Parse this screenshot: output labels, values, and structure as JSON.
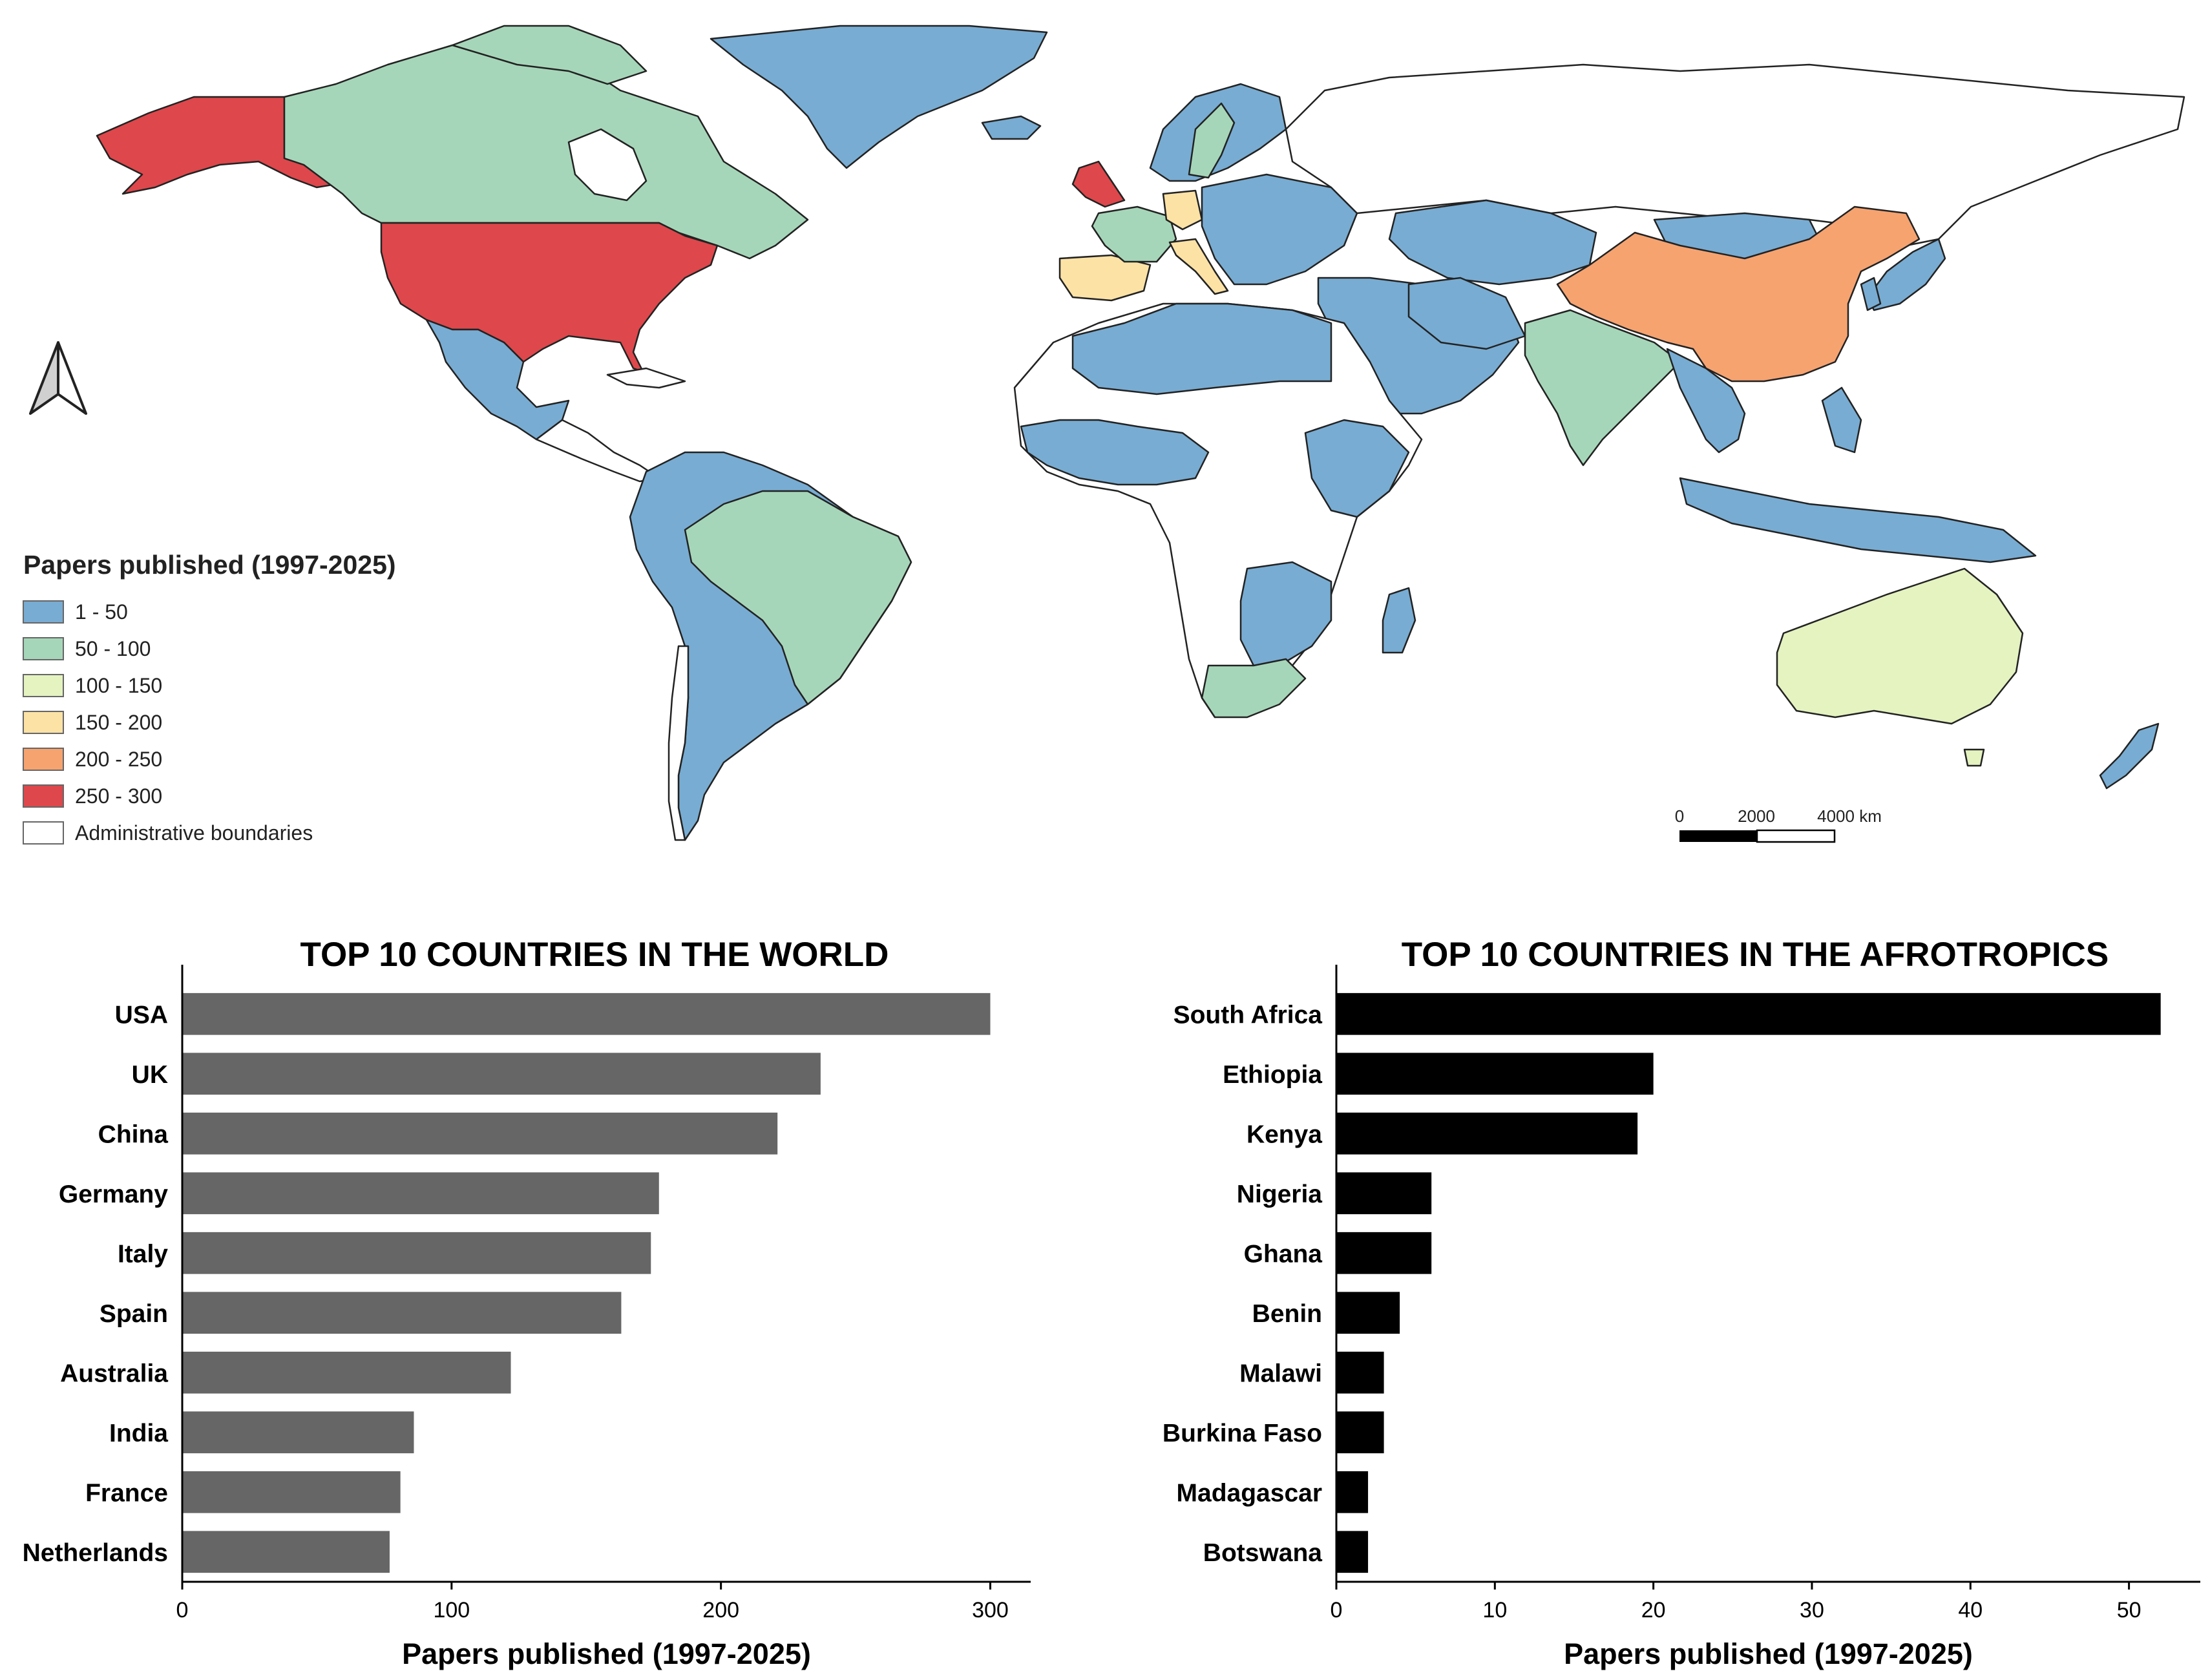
{
  "map": {
    "legend_title": "Papers published (1997-2025)",
    "legend": [
      {
        "label": "1 - 50",
        "color": "#78acd2"
      },
      {
        "label": "50 - 100",
        "color": "#a6d6b9"
      },
      {
        "label": "100 - 150",
        "color": "#e4f3c0"
      },
      {
        "label": "150 - 200",
        "color": "#fde2a6"
      },
      {
        "label": "200 - 250",
        "color": "#f6a370"
      },
      {
        "label": "250 - 300",
        "color": "#de474b"
      },
      {
        "label": "Administrative boundaries",
        "color": "#ffffff"
      }
    ],
    "scale_labels": [
      "0",
      "2000",
      "4000 km"
    ],
    "north_arrow_icon": "north-arrow-icon"
  },
  "chart_data": [
    {
      "type": "bar",
      "orientation": "horizontal",
      "title": "TOP 10 COUNTRIES IN THE WORLD",
      "xlabel": "Papers published (1997-2025)",
      "categories": [
        "USA",
        "UK",
        "China",
        "Germany",
        "Italy",
        "Spain",
        "Australia",
        "India",
        "France",
        "Netherlands"
      ],
      "values": [
        300,
        237,
        221,
        177,
        174,
        163,
        122,
        86,
        81,
        77
      ],
      "xlim": [
        0,
        315
      ],
      "xticks": [
        0,
        100,
        200,
        300
      ],
      "color": "#666666"
    },
    {
      "type": "bar",
      "orientation": "horizontal",
      "title": "TOP 10 COUNTRIES IN THE AFROTROPICS",
      "xlabel": "Papers published (1997-2025)",
      "categories": [
        "South Africa",
        "Ethiopia",
        "Kenya",
        "Nigeria",
        "Ghana",
        "Benin",
        "Malawi",
        "Burkina Faso",
        "Madagascar",
        "Botswana"
      ],
      "values": [
        52,
        20,
        19,
        6,
        6,
        4,
        3,
        3,
        2,
        2
      ],
      "xlim": [
        0,
        54.5
      ],
      "xticks": [
        0,
        10,
        20,
        30,
        40,
        50
      ],
      "color": "#000000"
    }
  ]
}
